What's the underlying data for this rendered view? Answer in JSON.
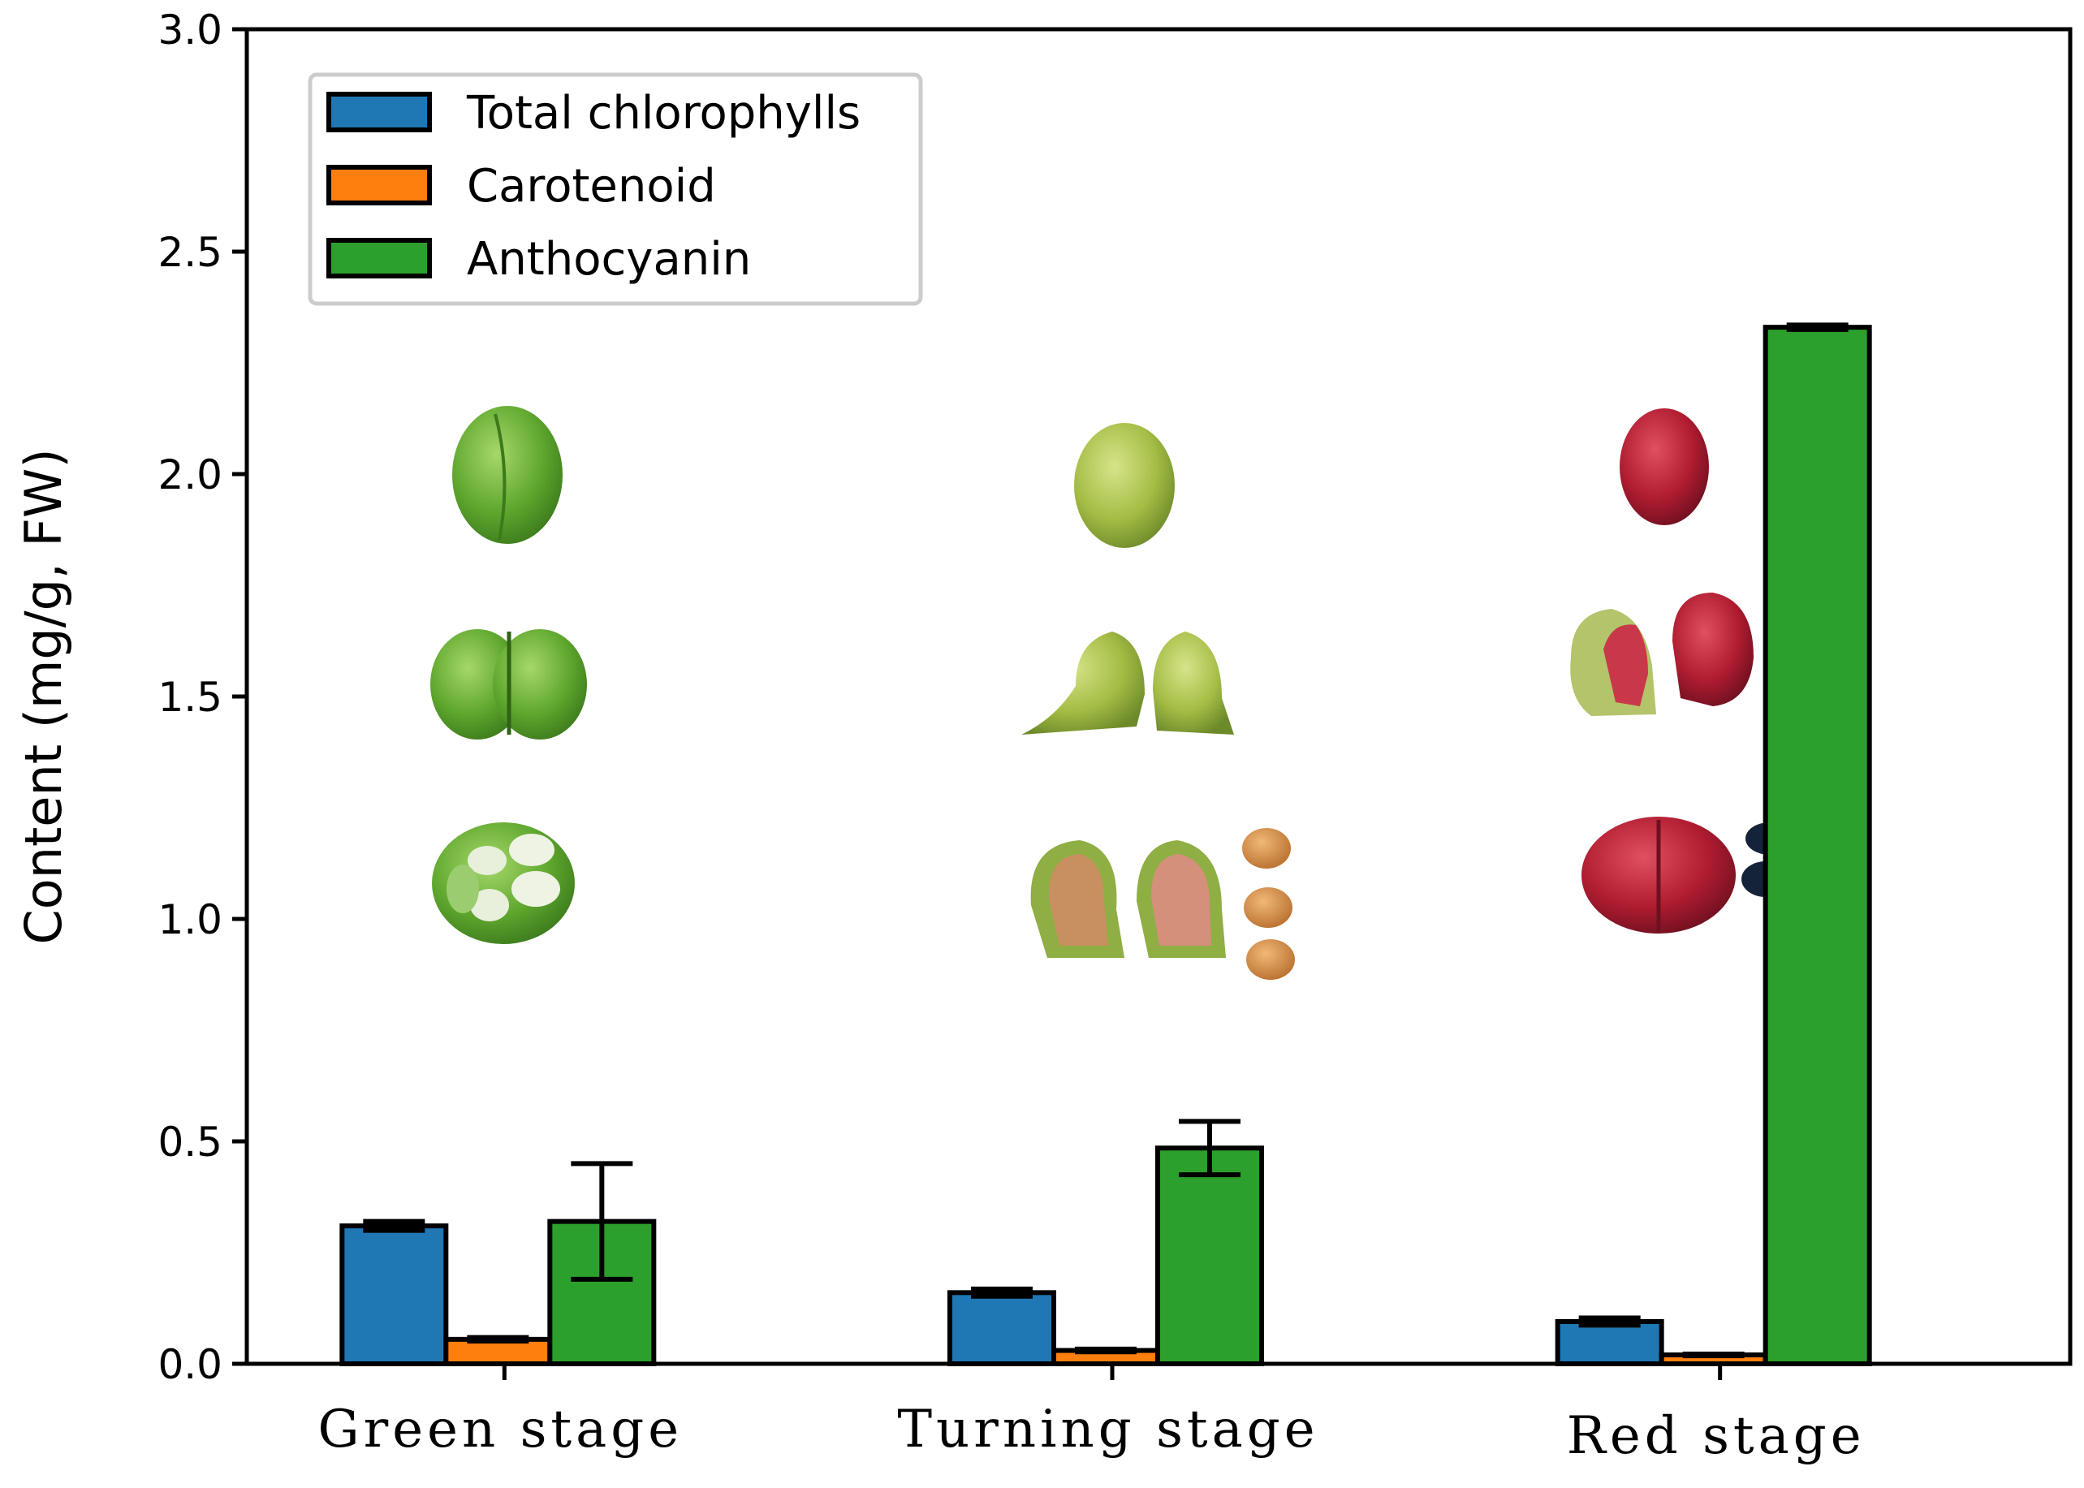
{
  "chart_data": {
    "type": "bar",
    "categories": [
      "Green stage",
      "Turning stage",
      "Red stage"
    ],
    "series": [
      {
        "name": "Total chlorophylls",
        "color": "#1f77b4",
        "values": [
          0.31,
          0.16,
          0.095
        ],
        "errors": [
          0.01,
          0.008,
          0.008
        ]
      },
      {
        "name": "Carotenoid",
        "color": "#ff7f0e",
        "values": [
          0.055,
          0.03,
          0.02
        ],
        "errors": [
          0.004,
          0.003,
          0.002
        ]
      },
      {
        "name": "Anthocyanin",
        "color": "#2ca02c",
        "values": [
          0.32,
          0.485,
          2.33
        ],
        "errors": [
          0.13,
          0.06,
          0.005
        ]
      }
    ],
    "xlabel": "",
    "ylabel": "Content (mg/g, FW)",
    "ylim": [
      0,
      3.0
    ],
    "yticks": [
      "0.0",
      "0.5",
      "1.0",
      "1.5",
      "2.0",
      "2.5",
      "3.0"
    ],
    "legend_position": "top-left",
    "grid": false,
    "insets": [
      "green-fruit-photos",
      "turning-fruit-photos",
      "red-fruit-photos"
    ]
  }
}
